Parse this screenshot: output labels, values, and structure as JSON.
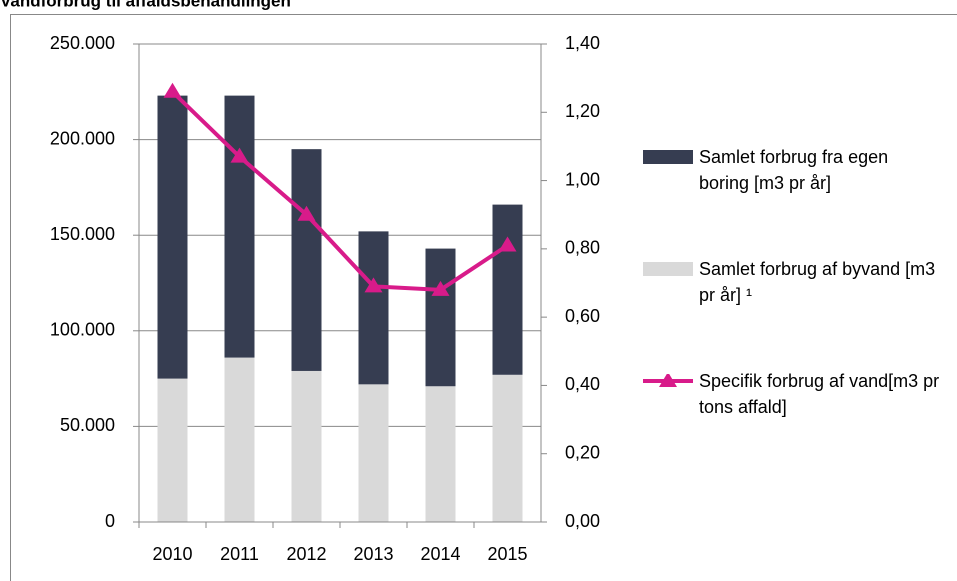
{
  "chart_data": {
    "type": "bar",
    "stacked": true,
    "title": "Vandforbrug til affaldsbehandlingen",
    "categories": [
      "2010",
      "2011",
      "2012",
      "2013",
      "2014",
      "2015"
    ],
    "series": [
      {
        "name": "Samlet forbrug af byvand [m3 pr år] ¹",
        "color": "#d9d9d9",
        "values": [
          75000,
          86000,
          79000,
          72000,
          71000,
          77000
        ]
      },
      {
        "name": "Samlet forbrug fra egen boring [m3 pr år]",
        "color": "#363d51",
        "values": [
          148000,
          137000,
          116000,
          80000,
          72000,
          89000
        ]
      },
      {
        "name": "Specifik forbrug af vand[m3  pr tons affald]",
        "color": "#d81b8a",
        "type": "line",
        "axis": "y2",
        "marker": "triangle",
        "values": [
          1.26,
          1.07,
          0.9,
          0.69,
          0.68,
          0.81
        ]
      }
    ],
    "legend_order": [
      1,
      0,
      2
    ],
    "ylim": [
      0,
      250000
    ],
    "yticks": [
      0,
      {
        "value": 50000,
        "label": "50.000"
      },
      {
        "value": 100000,
        "label": "100.000"
      },
      {
        "value": 150000,
        "label": "150.000"
      },
      {
        "value": 200000,
        "label": "200.000"
      },
      {
        "value": 250000,
        "label": "250.000"
      }
    ],
    "y2lim": [
      0,
      1.4
    ],
    "y2ticks": [
      {
        "value": 0,
        "label": "0,00"
      },
      {
        "value": 0.2,
        "label": "0,20"
      },
      {
        "value": 0.4,
        "label": "0,40"
      },
      {
        "value": 0.6,
        "label": "0,60"
      },
      {
        "value": 0.8,
        "label": "0,80"
      },
      {
        "value": 1.0,
        "label": "1,00"
      },
      {
        "value": 1.2,
        "label": "1,20"
      },
      {
        "value": 1.4,
        "label": "1,40"
      }
    ],
    "grid": true,
    "legend": "right"
  }
}
